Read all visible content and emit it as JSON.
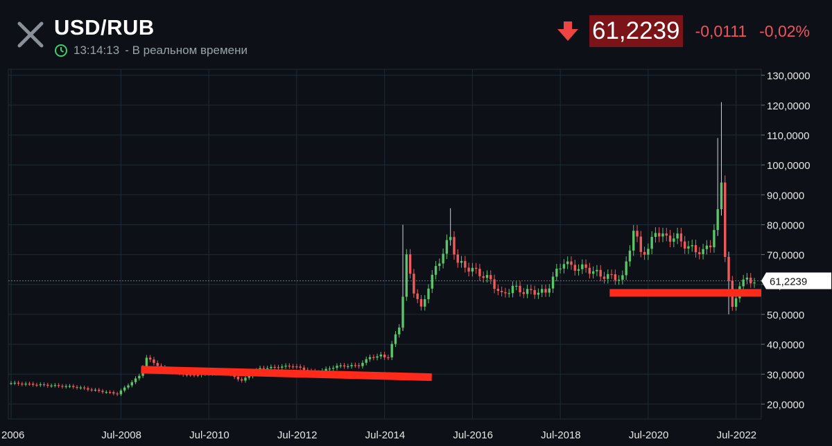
{
  "header": {
    "title": "USD/RUB",
    "time": "13:14:13",
    "realtime_label": "- В реальном времени",
    "price": "61,2239",
    "change": "-0,0111",
    "change_pct": "-0,02%"
  },
  "colors": {
    "background": "#0d1117",
    "grid": "#1f2a36",
    "up": "#5cc46a",
    "down": "#ef5b5b",
    "price_box": "#7a1418",
    "highlight_line": "#ff2a1a"
  },
  "icons": [
    "close-icon",
    "clock-icon",
    "down-arrow-icon"
  ],
  "chart_data": {
    "type": "candlestick",
    "interval": "monthly",
    "x_tick_labels": [
      "2006",
      "Jul-2008",
      "Jul-2010",
      "Jul-2012",
      "Jul-2014",
      "Jul-2016",
      "Jul-2018",
      "Jul-2020",
      "Jul-2022"
    ],
    "y_tick_labels": [
      "20,0000",
      "30,0000",
      "40,0000",
      "50,0000",
      "60,0000",
      "70,0000",
      "80,0000",
      "90,0000",
      "100,0000",
      "110,0000",
      "120,0000",
      "130,0000"
    ],
    "y_ticks": [
      20,
      30,
      40,
      50,
      60,
      70,
      80,
      90,
      100,
      110,
      120,
      130
    ],
    "ylim": [
      15,
      132
    ],
    "xlim": [
      "2006-01",
      "2022-12"
    ],
    "current_price": 61.2239,
    "current_price_label": "61,2239",
    "grid": true,
    "annotations": [
      {
        "type": "line",
        "color": "#ff2a1a",
        "from": {
          "x": "2009-02",
          "y": 31.5
        },
        "to": {
          "x": "2015-06",
          "y": 29.0
        }
      },
      {
        "type": "line",
        "color": "#ff2a1a",
        "from": {
          "x": "2019-10",
          "y": 57.2
        },
        "to": {
          "x": "2022-12",
          "y": 57.2
        }
      }
    ],
    "anchors": [
      [
        "2006-01",
        27.0
      ],
      [
        "2007-06",
        25.8
      ],
      [
        "2008-06",
        23.4
      ],
      [
        "2008-12",
        29.4
      ],
      [
        "2009-02",
        35.5
      ],
      [
        "2009-07",
        31.3
      ],
      [
        "2010-02",
        29.6
      ],
      [
        "2010-07",
        30.4
      ],
      [
        "2010-12",
        30.5
      ],
      [
        "2011-04",
        27.8
      ],
      [
        "2011-09",
        31.9
      ],
      [
        "2011-12",
        32.2
      ],
      [
        "2012-06",
        32.8
      ],
      [
        "2012-12",
        30.4
      ],
      [
        "2013-06",
        32.7
      ],
      [
        "2013-12",
        32.9
      ],
      [
        "2014-03",
        35.7
      ],
      [
        "2014-08",
        36.1
      ],
      [
        "2014-11",
        46.3
      ],
      [
        "2014-12",
        56.2
      ],
      [
        "2015-01",
        68.9
      ],
      [
        "2015-03",
        58.2
      ],
      [
        "2015-05",
        51.6
      ],
      [
        "2015-07",
        59.5
      ],
      [
        "2015-09",
        65.4
      ],
      [
        "2015-12",
        73.6
      ],
      [
        "2016-01",
        75.6
      ],
      [
        "2016-03",
        67.2
      ],
      [
        "2016-09",
        63.7
      ],
      [
        "2016-12",
        61.3
      ],
      [
        "2017-03",
        56.3
      ],
      [
        "2017-06",
        59.1
      ],
      [
        "2017-09",
        57.6
      ],
      [
        "2017-12",
        57.6
      ],
      [
        "2018-03",
        57.3
      ],
      [
        "2018-05",
        62.3
      ],
      [
        "2018-08",
        67.8
      ],
      [
        "2018-10",
        65.8
      ],
      [
        "2019-02",
        65.4
      ],
      [
        "2019-06",
        63.1
      ],
      [
        "2019-12",
        62.0
      ],
      [
        "2020-03",
        78.0
      ],
      [
        "2020-05",
        71.2
      ],
      [
        "2020-07",
        71.3
      ],
      [
        "2020-09",
        78.2
      ],
      [
        "2020-11",
        75.8
      ],
      [
        "2021-03",
        75.6
      ],
      [
        "2021-06",
        72.3
      ],
      [
        "2021-10",
        70.8
      ],
      [
        "2021-12",
        73.7
      ],
      [
        "2022-02",
        83.7
      ],
      [
        "2022-03",
        94.0
      ],
      [
        "2022-04",
        70.8
      ],
      [
        "2022-06",
        51.4
      ],
      [
        "2022-08",
        60.3
      ],
      [
        "2022-10",
        61.5
      ],
      [
        "2022-12",
        61.2
      ]
    ],
    "spikes": [
      {
        "x": "2022-03",
        "high": 121.0
      },
      {
        "x": "2022-02",
        "high": 109.0
      },
      {
        "x": "2014-12",
        "high": 80.0
      },
      {
        "x": "2016-01",
        "high": 85.5
      },
      {
        "x": "2022-05",
        "low": 50.0
      }
    ]
  }
}
